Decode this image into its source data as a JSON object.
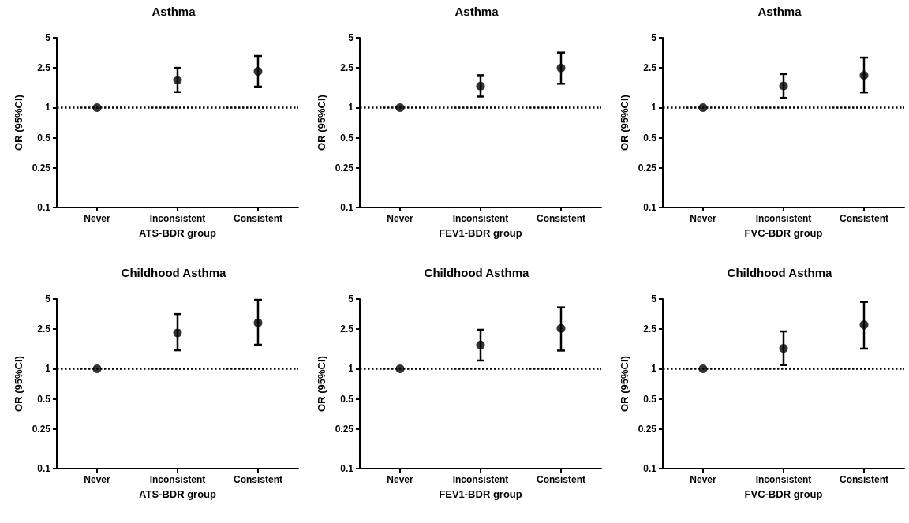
{
  "chart_data": [
    {
      "type": "scatter",
      "title": "Asthma",
      "xlabel": "ATS-BDR group",
      "ylabel": "OR (95%CI)",
      "categories": [
        "Never",
        "Inconsistent",
        "Consistent"
      ],
      "values": [
        1,
        1.9,
        2.31
      ],
      "errors": [
        null,
        [
          1.43,
          2.5
        ],
        [
          1.62,
          3.29
        ]
      ],
      "color": "#000000",
      "log": true,
      "ylim": [
        0.1,
        5
      ],
      "yticks": [
        0.1,
        0.25,
        0.5,
        1,
        2.5,
        5
      ],
      "grid": false,
      "marker": "circle",
      "ref_lines": [
        {
          "axis": "y",
          "value": 1,
          "line_style": "dotted",
          "color": "#000000"
        }
      ]
    },
    {
      "type": "scatter",
      "title": "Asthma",
      "xlabel": "FEV1-BDR group",
      "ylabel": "OR (95%CI)",
      "categories": [
        "Never",
        "Inconsistent",
        "Consistent"
      ],
      "values": [
        1,
        1.64,
        2.49
      ],
      "errors": [
        null,
        [
          1.29,
          2.11
        ],
        [
          1.73,
          3.56
        ]
      ],
      "color": "#000000",
      "log": true,
      "ylim": [
        0.1,
        5
      ],
      "yticks": [
        0.1,
        0.25,
        0.5,
        1,
        2.5,
        5
      ],
      "grid": false,
      "marker": "circle",
      "ref_lines": [
        {
          "axis": "y",
          "value": 1,
          "line_style": "dotted",
          "color": "#000000"
        }
      ]
    },
    {
      "type": "scatter",
      "title": "Asthma",
      "xlabel": "FVC-BDR group",
      "ylabel": "OR (95%CI)",
      "categories": [
        "Never",
        "Inconsistent",
        "Consistent"
      ],
      "values": [
        1,
        1.65,
        2.11
      ],
      "errors": [
        null,
        [
          1.25,
          2.17
        ],
        [
          1.42,
          3.17
        ]
      ],
      "color": "#000000",
      "log": true,
      "ylim": [
        0.1,
        5
      ],
      "yticks": [
        0.1,
        0.25,
        0.5,
        1,
        2.5,
        5
      ],
      "grid": false,
      "marker": "circle",
      "ref_lines": [
        {
          "axis": "y",
          "value": 1,
          "line_style": "dotted",
          "color": "#000000"
        }
      ]
    },
    {
      "type": "scatter",
      "title": "Childhood Asthma",
      "xlabel": "ATS-BDR group",
      "ylabel": "OR (95%CI)",
      "categories": [
        "Never",
        "Inconsistent",
        "Consistent"
      ],
      "values": [
        1,
        2.29,
        2.89
      ],
      "errors": [
        null,
        [
          1.53,
          3.53
        ],
        [
          1.74,
          4.91
        ]
      ],
      "color": "#000000",
      "log": true,
      "ylim": [
        0.1,
        5
      ],
      "yticks": [
        0.1,
        0.25,
        0.5,
        1,
        2.5,
        5
      ],
      "grid": false,
      "marker": "circle",
      "ref_lines": [
        {
          "axis": "y",
          "value": 1,
          "line_style": "dotted",
          "color": "#000000"
        }
      ]
    },
    {
      "type": "scatter",
      "title": "Childhood Asthma",
      "xlabel": "FEV1-BDR group",
      "ylabel": "OR (95%CI)",
      "categories": [
        "Never",
        "Inconsistent",
        "Consistent"
      ],
      "values": [
        1,
        1.73,
        2.54
      ],
      "errors": [
        null,
        [
          1.21,
          2.46
        ],
        [
          1.52,
          4.12
        ]
      ],
      "color": "#000000",
      "log": true,
      "ylim": [
        0.1,
        5
      ],
      "yticks": [
        0.1,
        0.25,
        0.5,
        1,
        2.5,
        5
      ],
      "grid": false,
      "marker": "circle",
      "ref_lines": [
        {
          "axis": "y",
          "value": 1,
          "line_style": "dotted",
          "color": "#000000"
        }
      ]
    },
    {
      "type": "scatter",
      "title": "Childhood Asthma",
      "xlabel": "FVC-BDR group",
      "ylabel": "OR (95%CI)",
      "categories": [
        "Never",
        "Inconsistent",
        "Consistent"
      ],
      "values": [
        1,
        1.6,
        2.75
      ],
      "errors": [
        null,
        [
          1.09,
          2.37
        ],
        [
          1.59,
          4.68
        ]
      ],
      "color": "#000000",
      "log": true,
      "ylim": [
        0.1,
        5
      ],
      "yticks": [
        0.1,
        0.25,
        0.5,
        1,
        2.5,
        5
      ],
      "grid": false,
      "marker": "circle",
      "ref_lines": [
        {
          "axis": "y",
          "value": 1,
          "line_style": "dotted",
          "color": "#000000"
        }
      ]
    }
  ]
}
